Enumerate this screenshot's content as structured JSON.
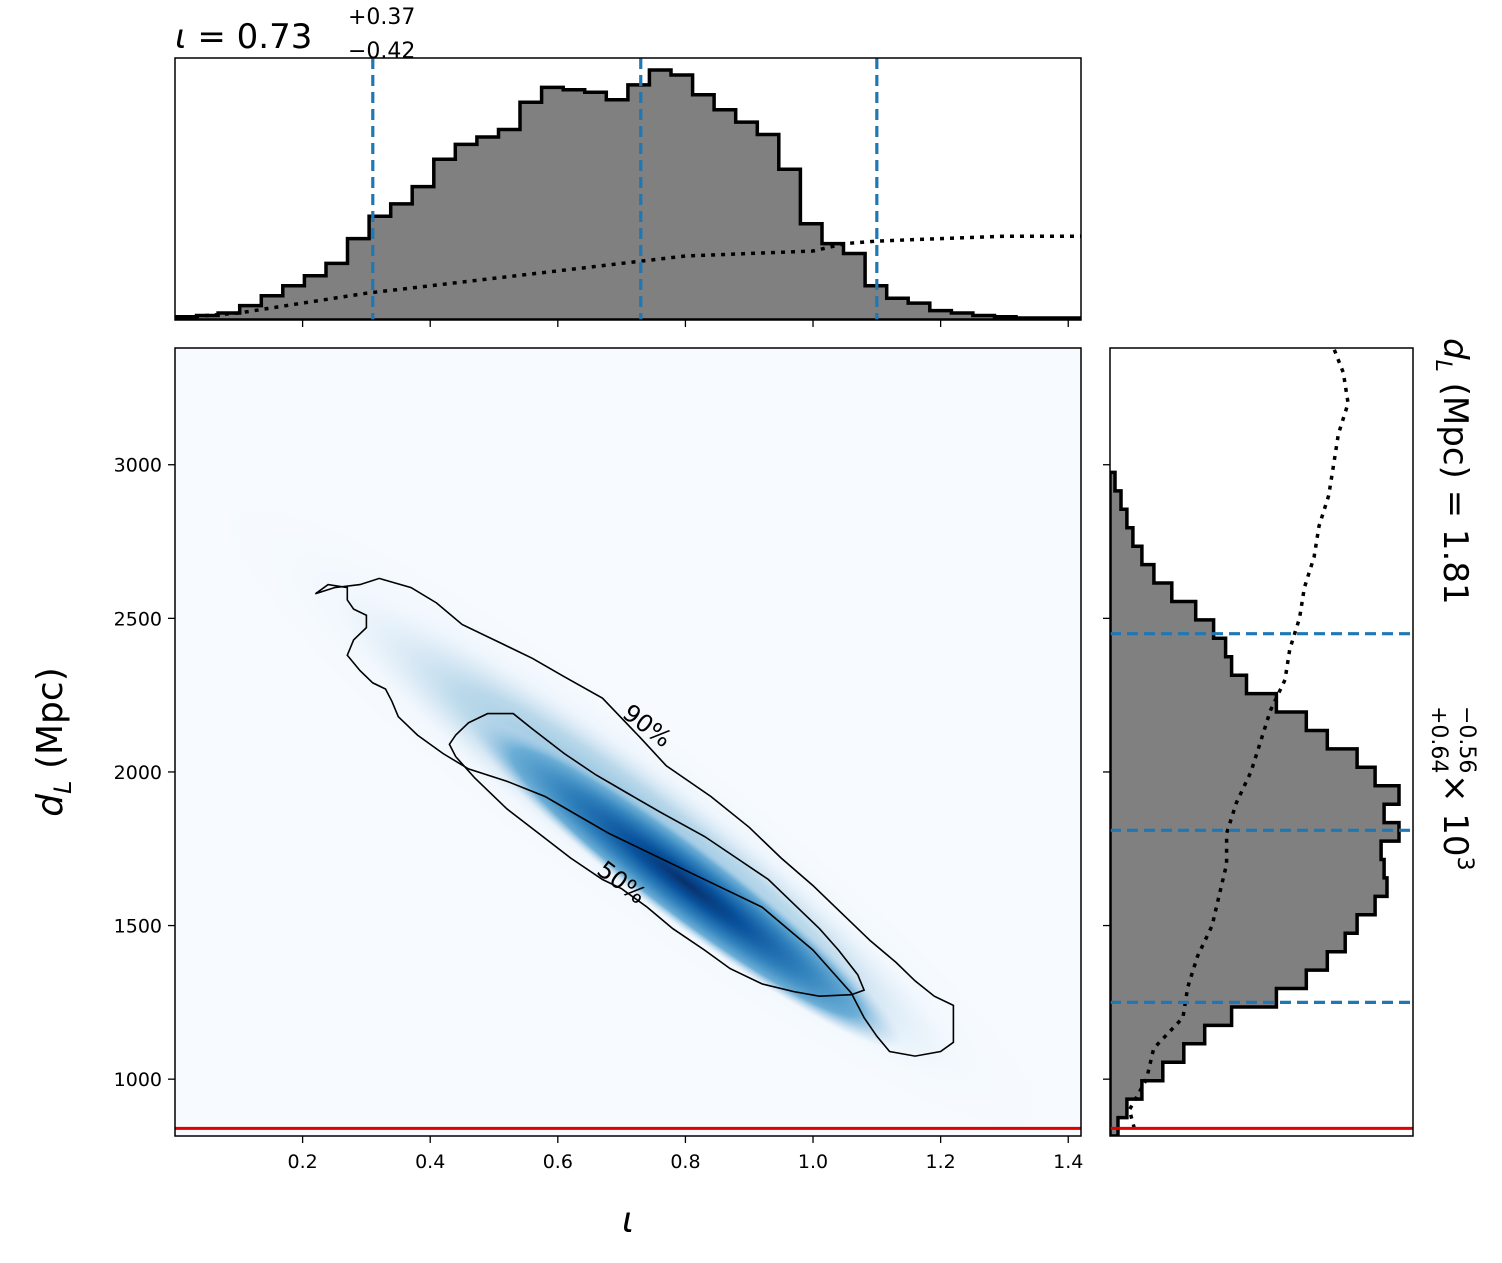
{
  "chart_data": [
    {
      "panel": "joint",
      "type": "heatmap",
      "xlabel_symbol": "ι",
      "ylabel_symbol": "d",
      "ylabel_subscript": "L",
      "ylabel_unit": "(Mpc)",
      "xlim": [
        0.0,
        1.42
      ],
      "ylim": [
        815,
        3380
      ],
      "xticks": [
        0.2,
        0.4,
        0.6,
        0.8,
        1.0,
        1.2,
        1.4
      ],
      "xtick_labels": [
        "0.2",
        "0.4",
        "0.6",
        "0.8",
        "1.0",
        "1.2",
        "1.4"
      ],
      "yticks": [
        1000,
        1500,
        2000,
        2500,
        3000
      ],
      "ytick_labels": [
        "1000",
        "1500",
        "2000",
        "2500",
        "3000"
      ],
      "colormap": "Blues",
      "density_peak": {
        "x": 0.8,
        "y": 1640
      },
      "contours": [
        {
          "label": "90%",
          "label_position": {
            "x": 0.74,
            "y": 2150
          },
          "points": [
            [
              0.22,
              2580
            ],
            [
              0.24,
              2610
            ],
            [
              0.27,
              2600
            ],
            [
              0.27,
              2560
            ],
            [
              0.28,
              2530
            ],
            [
              0.3,
              2510
            ],
            [
              0.3,
              2470
            ],
            [
              0.28,
              2430
            ],
            [
              0.27,
              2380
            ],
            [
              0.29,
              2330
            ],
            [
              0.31,
              2290
            ],
            [
              0.33,
              2270
            ],
            [
              0.34,
              2230
            ],
            [
              0.35,
              2180
            ],
            [
              0.38,
              2120
            ],
            [
              0.42,
              2060
            ],
            [
              0.46,
              2010
            ],
            [
              0.52,
              1970
            ],
            [
              0.58,
              1920
            ],
            [
              0.63,
              1860
            ],
            [
              0.68,
              1800
            ],
            [
              0.74,
              1740
            ],
            [
              0.8,
              1680
            ],
            [
              0.86,
              1620
            ],
            [
              0.92,
              1560
            ],
            [
              0.96,
              1490
            ],
            [
              1.0,
              1420
            ],
            [
              1.03,
              1350
            ],
            [
              1.06,
              1280
            ],
            [
              1.08,
              1200
            ],
            [
              1.1,
              1140
            ],
            [
              1.12,
              1090
            ],
            [
              1.16,
              1075
            ],
            [
              1.2,
              1090
            ],
            [
              1.22,
              1120
            ],
            [
              1.22,
              1190
            ],
            [
              1.22,
              1240
            ],
            [
              1.19,
              1270
            ],
            [
              1.16,
              1320
            ],
            [
              1.13,
              1380
            ],
            [
              1.09,
              1450
            ],
            [
              1.05,
              1530
            ],
            [
              1.0,
              1630
            ],
            [
              0.95,
              1720
            ],
            [
              0.9,
              1820
            ],
            [
              0.84,
              1920
            ],
            [
              0.77,
              2020
            ],
            [
              0.73,
              2110
            ],
            [
              0.67,
              2240
            ],
            [
              0.61,
              2310
            ],
            [
              0.56,
              2370
            ],
            [
              0.51,
              2420
            ],
            [
              0.45,
              2480
            ],
            [
              0.41,
              2550
            ],
            [
              0.37,
              2600
            ],
            [
              0.32,
              2630
            ],
            [
              0.29,
              2610
            ],
            [
              0.25,
              2600
            ],
            [
              0.22,
              2580
            ]
          ]
        },
        {
          "label": "50%",
          "label_position": {
            "x": 0.7,
            "y": 1640
          },
          "points": [
            [
              0.44,
              2120
            ],
            [
              0.46,
              2160
            ],
            [
              0.49,
              2190
            ],
            [
              0.53,
              2190
            ],
            [
              0.56,
              2140
            ],
            [
              0.61,
              2060
            ],
            [
              0.66,
              1990
            ],
            [
              0.71,
              1930
            ],
            [
              0.76,
              1870
            ],
            [
              0.83,
              1790
            ],
            [
              0.88,
              1720
            ],
            [
              0.93,
              1650
            ],
            [
              0.97,
              1570
            ],
            [
              1.01,
              1490
            ],
            [
              1.04,
              1420
            ],
            [
              1.07,
              1340
            ],
            [
              1.08,
              1290
            ],
            [
              1.06,
              1275
            ],
            [
              1.01,
              1270
            ],
            [
              0.97,
              1285
            ],
            [
              0.92,
              1310
            ],
            [
              0.87,
              1360
            ],
            [
              0.83,
              1420
            ],
            [
              0.78,
              1490
            ],
            [
              0.74,
              1560
            ],
            [
              0.7,
              1620
            ],
            [
              0.67,
              1650
            ],
            [
              0.62,
              1720
            ],
            [
              0.57,
              1800
            ],
            [
              0.52,
              1880
            ],
            [
              0.47,
              1980
            ],
            [
              0.44,
              2050
            ],
            [
              0.43,
              2090
            ],
            [
              0.44,
              2120
            ]
          ]
        }
      ],
      "reference_line": {
        "orientation": "horizontal",
        "y": 840,
        "color": "#e00000"
      }
    },
    {
      "panel": "marginal-top",
      "type": "bar",
      "title_symbol": "ι",
      "title_value": "0.73",
      "title_plus": "+0.37",
      "title_minus": "−0.42",
      "xlim": [
        0.0,
        1.42
      ],
      "bin_edges": [
        0.0,
        0.0338,
        0.0676,
        0.1014,
        0.1352,
        0.169,
        0.2028,
        0.2366,
        0.2704,
        0.3042,
        0.338,
        0.3718,
        0.4056,
        0.4394,
        0.4732,
        0.507,
        0.5408,
        0.5746,
        0.6084,
        0.6422,
        0.676,
        0.7098,
        0.7436,
        0.7774,
        0.8112,
        0.845,
        0.8788,
        0.9126,
        0.9464,
        0.9802,
        1.014,
        1.0478,
        1.0816,
        1.1154,
        1.1492,
        1.183,
        1.2168,
        1.2506,
        1.2844,
        1.3182,
        1.352,
        1.3858,
        1.42
      ],
      "values": [
        0.5,
        1,
        2,
        5,
        9,
        13,
        17,
        22,
        32,
        41,
        46,
        53,
        64,
        70,
        73,
        76,
        87,
        93,
        92,
        91,
        88,
        94,
        100,
        98,
        90,
        84,
        79,
        74,
        60,
        38,
        30,
        26,
        13,
        8,
        6,
        3,
        2,
        1,
        0.5,
        0,
        0,
        0
      ],
      "prior_line": {
        "style": "dotted",
        "x": [
          0.0,
          0.1,
          0.2,
          0.3,
          0.4,
          0.5,
          0.6,
          0.7,
          0.8,
          0.9,
          1.0,
          1.05,
          1.1,
          1.2,
          1.3,
          1.42
        ],
        "values": [
          0,
          2,
          6,
          10,
          13,
          16,
          19,
          22,
          25,
          26,
          27,
          30,
          31,
          32,
          33,
          33
        ]
      },
      "quantile_lines": [
        0.31,
        0.73,
        1.1
      ],
      "quantile_color": "#1f77b4",
      "fill_color": "#808080",
      "reference_line": null
    },
    {
      "panel": "marginal-right",
      "type": "bar",
      "orientation": "horizontal",
      "title_symbol": "d",
      "title_subscript": "L",
      "title_unit": "(Mpc)",
      "title_value": "1.81",
      "title_plus": "+0.64",
      "title_minus": "−0.56",
      "title_multiplier": "× 10",
      "title_exponent": "3",
      "ylim": [
        815,
        3380
      ],
      "bin_edges": [
        815,
        875,
        935,
        995,
        1055,
        1115,
        1175,
        1235,
        1295,
        1355,
        1415,
        1475,
        1535,
        1595,
        1655,
        1715,
        1775,
        1835,
        1895,
        1955,
        2015,
        2075,
        2135,
        2195,
        2255,
        2315,
        2375,
        2435,
        2495,
        2555,
        2615,
        2675,
        2735,
        2795,
        2855,
        2915,
        2975
      ],
      "values": [
        2,
        5,
        10,
        17,
        24,
        31,
        40,
        55,
        65,
        72,
        78,
        82,
        88,
        92,
        91,
        90,
        96,
        91,
        96,
        88,
        82,
        72,
        65,
        55,
        45,
        40,
        38,
        34,
        28,
        20,
        14,
        10,
        7,
        5,
        3,
        1
      ],
      "prior_line": {
        "style": "dotted",
        "y": [
          840,
          900,
          1000,
          1100,
          1200,
          1300,
          1400,
          1500,
          1600,
          1700,
          1800,
          1900,
          2000,
          2100,
          2200,
          2300,
          2400,
          2500,
          2600,
          2700,
          2800,
          2900,
          3000,
          3100,
          3200,
          3300,
          3380
        ],
        "values": [
          10,
          8,
          15,
          18,
          30,
          32,
          36,
          42,
          45,
          48,
          48,
          52,
          58,
          62,
          66,
          72,
          74,
          78,
          80,
          84,
          86,
          90,
          92,
          94,
          98,
          96,
          92
        ]
      },
      "quantile_lines": [
        1250,
        1810,
        2450
      ],
      "quantile_color": "#1f77b4",
      "fill_color": "#808080",
      "reference_line": {
        "orientation": "horizontal",
        "y": 840,
        "color": "#e00000"
      }
    }
  ]
}
